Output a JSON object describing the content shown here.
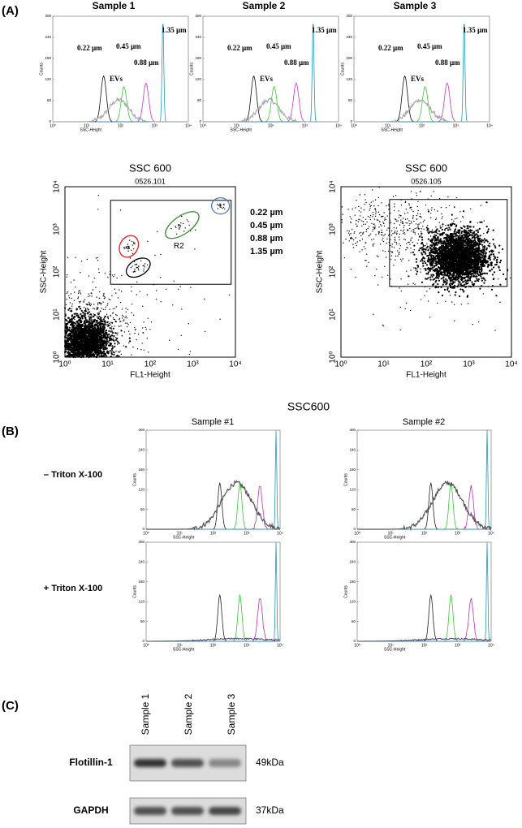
{
  "panel_a": {
    "label": "(A)",
    "histograms": [
      {
        "title": "Sample 1"
      },
      {
        "title": "Sample 2"
      },
      {
        "title": "Sample 3"
      }
    ],
    "annotations": {
      "size_022": "0.22 µm",
      "size_045": "0.45 µm",
      "size_088": "0.88 µm",
      "size_135": "1.35 µm",
      "evs": "EVs"
    },
    "scatter": [
      {
        "title": "SSC 600",
        "subtitle": "0526.101",
        "gate": "R2"
      },
      {
        "title": "SSC 600",
        "subtitle": "0526.105"
      }
    ],
    "legend": [
      {
        "text": "0.22 µm",
        "color": "#000000"
      },
      {
        "text": "0.45 µm",
        "color": "#e31a1c"
      },
      {
        "text": "0.88 µm",
        "color": "#3a8a2a"
      },
      {
        "text": "1.35 µm",
        "color": "#4a78c0"
      }
    ]
  },
  "axes": {
    "hist_ylabel": "Counts",
    "hist_xlabel": "SSC-Height",
    "hist_yticks": [
      "0",
      "60",
      "120",
      "180",
      "240",
      "300"
    ],
    "log_ticks": [
      "10⁰",
      "10¹",
      "10²",
      "10³",
      "10⁴"
    ],
    "scatter_xlabel": "FL1-Height",
    "scatter_ylabel": "SSC-Height"
  },
  "panel_b": {
    "label": "(B)",
    "title": "SSC600",
    "columns": [
      "Sample #1",
      "Sample #2"
    ],
    "rows": [
      "– Triton X-100",
      "+ Triton X-100"
    ]
  },
  "panel_c": {
    "label": "(C)",
    "lanes": [
      "Sample 1",
      "Sample 2",
      "Sample 3"
    ],
    "bands": [
      {
        "name": "Flotillin-1",
        "size": "49kDa"
      },
      {
        "name": "GAPDH",
        "size": "37kDa"
      }
    ]
  }
}
